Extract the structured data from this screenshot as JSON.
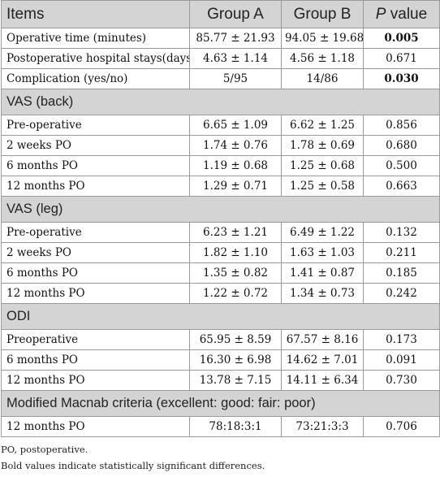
{
  "header": {
    "items": "Items",
    "group_a": "Group A",
    "group_b": "Group B",
    "p_italic": "P",
    "p_rest": " value"
  },
  "general_rows": [
    {
      "label": "Operative time (minutes)",
      "a": "85.77 ± 21.93",
      "b": "94.05 ± 19.68",
      "p": "0.005",
      "bold": true
    },
    {
      "label": "Postoperative hospital stays(days)",
      "a": "4.63 ± 1.14",
      "b": "4.56 ± 1.18",
      "p": "0.671",
      "bold": false
    },
    {
      "label": "Complication (yes/no)",
      "a": "5/95",
      "b": "14/86",
      "p": "0.030",
      "bold": true
    }
  ],
  "sections": [
    {
      "title": "VAS (back)",
      "rows": [
        {
          "label": "Pre-operative",
          "a": "6.65 ± 1.09",
          "b": "6.62 ± 1.25",
          "p": "0.856"
        },
        {
          "label": "2 weeks PO",
          "a": "1.74 ± 0.76",
          "b": "1.78 ± 0.69",
          "p": "0.680"
        },
        {
          "label": "6 months PO",
          "a": "1.19 ± 0.68",
          "b": "1.25 ± 0.68",
          "p": "0.500"
        },
        {
          "label": "12 months PO",
          "a": "1.29 ± 0.71",
          "b": "1.25 ± 0.58",
          "p": "0.663"
        }
      ]
    },
    {
      "title": "VAS (leg)",
      "rows": [
        {
          "label": "Pre-operative",
          "a": "6.23 ± 1.21",
          "b": "6.49 ± 1.22",
          "p": "0.132"
        },
        {
          "label": "2 weeks PO",
          "a": "1.82 ± 1.10",
          "b": "1.63 ± 1.03",
          "p": "0.211"
        },
        {
          "label": "6 months PO",
          "a": "1.35 ± 0.82",
          "b": "1.41 ± 0.87",
          "p": "0.185"
        },
        {
          "label": "12 months PO",
          "a": "1.22 ± 0.72",
          "b": "1.34 ± 0.73",
          "p": "0.242"
        }
      ]
    },
    {
      "title": "ODI",
      "rows": [
        {
          "label": "Preoperative",
          "a": "65.95 ± 8.59",
          "b": "67.57 ± 8.16",
          "p": "0.173"
        },
        {
          "label": "6 months PO",
          "a": "16.30 ± 6.98",
          "b": "14.62 ± 7.01",
          "p": "0.091"
        },
        {
          "label": "12 months PO",
          "a": "13.78 ± 7.15",
          "b": "14.11 ± 6.34",
          "p": "0.730"
        }
      ]
    },
    {
      "title": "Modified Macnab criteria (excellent: good: fair: poor)",
      "rows": [
        {
          "label": "12 months PO",
          "a": "78:18:3:1",
          "b": "73:21:3:3",
          "p": "0.706"
        }
      ]
    }
  ],
  "footnotes": [
    "PO, postoperative.",
    "Bold values indicate statistically significant differences."
  ]
}
